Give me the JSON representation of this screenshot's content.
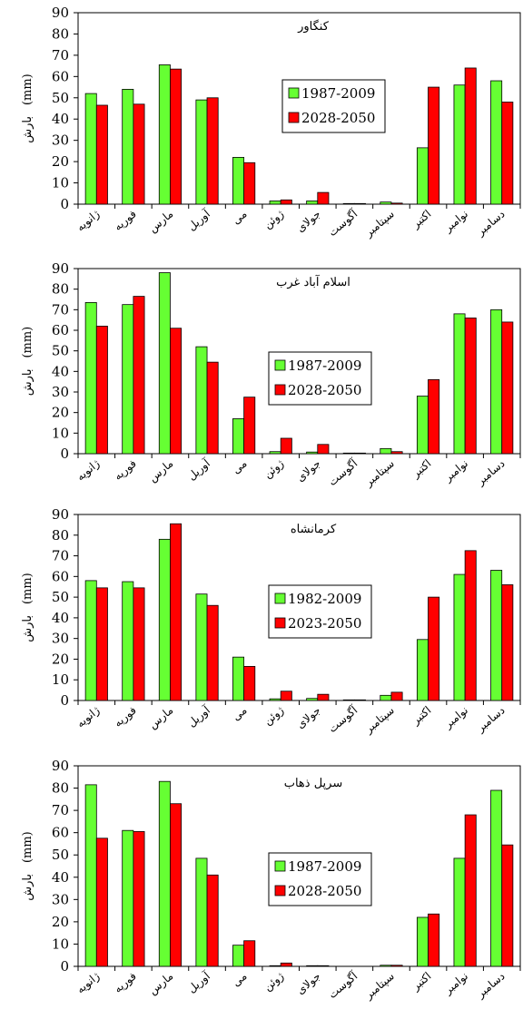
{
  "colors": {
    "baseline": "#66ff33",
    "future": "#ff0000",
    "stroke": "#000000"
  },
  "chart_data": [
    {
      "type": "bar",
      "title": "کنگاور",
      "ylabel_main": "بارش",
      "ylabel_unit": "(mm)",
      "ylim": [
        0,
        90
      ],
      "yticks": [
        0,
        10,
        20,
        30,
        40,
        50,
        60,
        70,
        80,
        90
      ],
      "grid": false,
      "legend_placement": "center-right",
      "categories": [
        "ژانویه",
        "فوریه",
        "مارس",
        "آوریل",
        "می",
        "ژوئن",
        "جولای",
        "آگوست",
        "سپتامبر",
        "اکتبر",
        "نوامبر",
        "دسامبر"
      ],
      "series": [
        {
          "name": "1987-2009",
          "values": [
            52,
            54,
            65.5,
            49,
            22,
            1.5,
            1.5,
            0.3,
            1,
            26.5,
            56,
            58
          ]
        },
        {
          "name": "2028-2050",
          "values": [
            46.5,
            47,
            63.5,
            50,
            19.5,
            2,
            5.5,
            0.3,
            0.5,
            55,
            64,
            48
          ]
        }
      ]
    },
    {
      "type": "bar",
      "title": "اسلام آباد غرب",
      "ylabel_main": "بارش",
      "ylabel_unit": "(mm)",
      "ylim": [
        0,
        90
      ],
      "yticks": [
        0,
        10,
        20,
        30,
        40,
        50,
        60,
        70,
        80,
        90
      ],
      "grid": false,
      "legend_placement": "center",
      "categories": [
        "ژانویه",
        "فوریه",
        "مارس",
        "آوریل",
        "می",
        "ژوئن",
        "جولای",
        "آگوست",
        "سپتامبر",
        "اکتبر",
        "نوامبر",
        "دسامبر"
      ],
      "series": [
        {
          "name": "1987-2009",
          "values": [
            73.5,
            72.5,
            88,
            52,
            17,
            1,
            0.8,
            0.3,
            2.5,
            28,
            68,
            70
          ]
        },
        {
          "name": "2028-2050",
          "values": [
            62,
            76.5,
            61,
            44.5,
            27.5,
            7.5,
            4.5,
            0.3,
            1,
            36,
            66,
            64
          ]
        }
      ]
    },
    {
      "type": "bar",
      "title": "کرمانشاه",
      "ylabel_main": "بارش",
      "ylabel_unit": "(mm)",
      "ylim": [
        0,
        90
      ],
      "yticks": [
        0,
        10,
        20,
        30,
        40,
        50,
        60,
        70,
        80,
        90
      ],
      "grid": false,
      "legend_placement": "center",
      "categories": [
        "ژانویه",
        "فوریه",
        "مارس",
        "آوریل",
        "می",
        "ژوئن",
        "جولای",
        "آگوست",
        "سپتامبر",
        "اکتبر",
        "نوامبر",
        "دسامبر"
      ],
      "series": [
        {
          "name": "1982-2009",
          "values": [
            58,
            57.5,
            78,
            51.5,
            21,
            0.8,
            1,
            0.3,
            2.5,
            29.5,
            61,
            63
          ]
        },
        {
          "name": "2023-2050",
          "values": [
            54.5,
            54.5,
            85.5,
            46,
            16.5,
            4.5,
            3,
            0.3,
            4,
            50,
            72.5,
            56
          ]
        }
      ]
    },
    {
      "type": "bar",
      "title": "سرپل ذهاب",
      "ylabel_main": "بارش",
      "ylabel_unit": "(mm)",
      "ylim": [
        0,
        90
      ],
      "yticks": [
        0,
        10,
        20,
        30,
        40,
        50,
        60,
        70,
        80,
        90
      ],
      "grid": false,
      "legend_placement": "center",
      "categories": [
        "ژانویه",
        "فوریه",
        "مارس",
        "آوریل",
        "می",
        "ژوئن",
        "جولای",
        "آگوست",
        "سپتامبر",
        "اکتبر",
        "نوامبر",
        "دسامبر"
      ],
      "series": [
        {
          "name": "1987-2009",
          "values": [
            81.5,
            61,
            83,
            48.5,
            9.5,
            0.3,
            0.3,
            0,
            0.5,
            22,
            48.5,
            79
          ]
        },
        {
          "name": "2028-2050",
          "values": [
            57.5,
            60.5,
            73,
            41,
            11.5,
            1.5,
            0.3,
            0,
            0.5,
            23.5,
            68,
            54.5
          ]
        }
      ]
    }
  ]
}
